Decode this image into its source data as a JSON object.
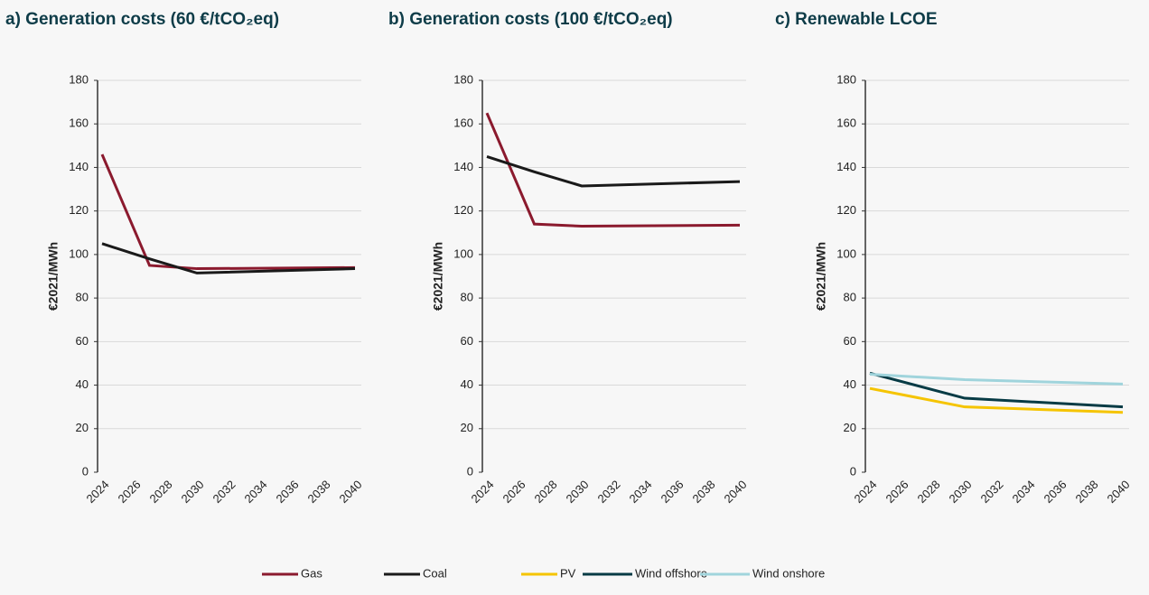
{
  "chart_data": [
    {
      "type": "line",
      "title": "a) Generation costs (60 €/tCO₂eq)",
      "y_label": "€2021/MWh",
      "x": [
        2024,
        2027,
        2030,
        2040
      ],
      "xlim": [
        2024,
        2040
      ],
      "xticks": [
        2024,
        2026,
        2028,
        2030,
        2032,
        2034,
        2036,
        2038,
        2040
      ],
      "ylim": [
        0,
        180
      ],
      "yticks": [
        0,
        20,
        40,
        60,
        80,
        100,
        120,
        140,
        160,
        180
      ],
      "grid": true,
      "series": [
        {
          "name": "Gas",
          "color": "#8b1a2e",
          "values": [
            146,
            95,
            93.5,
            94
          ]
        },
        {
          "name": "Coal",
          "color": "#1a1a1a",
          "values": [
            105,
            98,
            91.5,
            93.5
          ]
        }
      ]
    },
    {
      "type": "line",
      "title": "b) Generation costs (100 €/tCO₂eq)",
      "y_label": "€2021/MWh",
      "x": [
        2024,
        2027,
        2030,
        2040
      ],
      "xlim": [
        2024,
        2040
      ],
      "xticks": [
        2024,
        2026,
        2028,
        2030,
        2032,
        2034,
        2036,
        2038,
        2040
      ],
      "ylim": [
        0,
        180
      ],
      "yticks": [
        0,
        20,
        40,
        60,
        80,
        100,
        120,
        140,
        160,
        180
      ],
      "grid": true,
      "series": [
        {
          "color": "#8b1a2e",
          "values": [
            165,
            114,
            113,
            113.5
          ]
        },
        {
          "color": "#1a1a1a",
          "values": [
            145,
            138,
            131.5,
            133.5
          ]
        }
      ]
    },
    {
      "type": "line",
      "title": "c) Renewable LCOE",
      "y_label": "€2021/MWh",
      "x": [
        2024,
        2030,
        2040
      ],
      "xlim": [
        2024,
        2040
      ],
      "xticks": [
        2024,
        2026,
        2028,
        2030,
        2032,
        2034,
        2036,
        2038,
        2040
      ],
      "ylim": [
        0,
        180
      ],
      "yticks": [
        0,
        20,
        40,
        60,
        80,
        100,
        120,
        140,
        160,
        180
      ],
      "grid": true,
      "series": [
        {
          "name": "PV",
          "color": "#f5c400",
          "values": [
            38.5,
            30,
            27.5
          ]
        },
        {
          "name": "Wind offshore",
          "color": "#073b45",
          "values": [
            45.5,
            34,
            30
          ]
        },
        {
          "name": "Wind onshore",
          "color": "#a0d4dc",
          "values": [
            45,
            42.5,
            40.5
          ]
        }
      ]
    }
  ]
}
